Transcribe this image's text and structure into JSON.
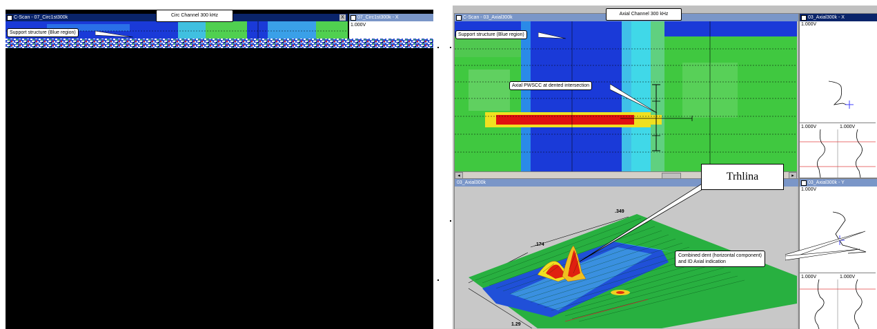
{
  "left_view": {
    "cscan_title": "C-Scan - 07_Circ1st300k",
    "channel_label": "Circ Channel 300 kHz",
    "support_callout": "Support structure (Blue region)",
    "x_title": "07_Circ1st300k - X",
    "x_close": "X",
    "volt": "1.000V"
  },
  "right_view": {
    "cscan_title": "C-Scan - 03_Axial300k",
    "channel_label": "Axial Channel 300 kHz",
    "support_callout": "Support structure (Blue region)",
    "axial_callout": "Axial PWSCC at dented intersection",
    "x_title": "03_Axial300k - X",
    "y_title": "03_Axial300k - Y",
    "volt": "1.000V",
    "plot3d_title": "03_Axial300k",
    "axis_labels": [
      ".349",
      ".174",
      "1.29"
    ],
    "dent_callout_line1": "Combined dent (horizontal component)",
    "dent_callout_line2": "and ID Axial indication",
    "trhlina": "Trhlina"
  },
  "colors": {
    "title_active": "#0a246a",
    "title_inactive": "#7a96c8",
    "blue": "#1030e0",
    "green": "#40c840",
    "red": "#e01010",
    "yellow": "#f0f020"
  }
}
